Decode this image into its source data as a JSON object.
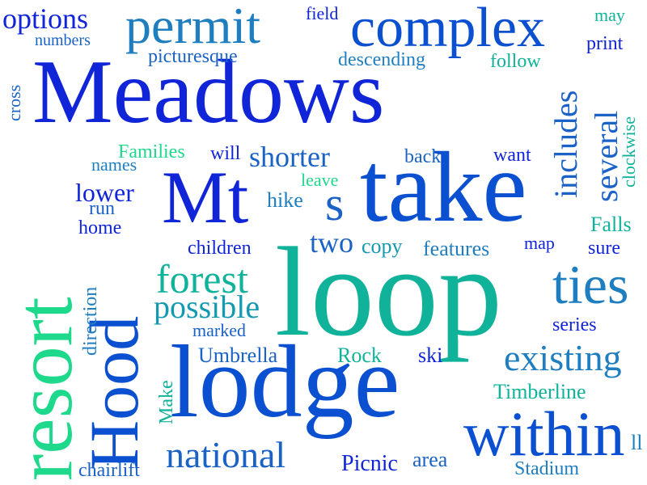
{
  "colors": {
    "blue_dark": "#1024d8",
    "blue": "#0b50d0",
    "blue_mid": "#1a62c6",
    "blue_light": "#1f7ec0",
    "teal": "#149ab0",
    "teal_green": "#10b39a",
    "green": "#1ed98c"
  },
  "words": [
    "Meadows",
    "loop",
    "take",
    "lodge",
    "resort",
    "Mt",
    "Hood",
    "complex",
    "permit",
    "within",
    "ties",
    "existing",
    "several",
    "forest",
    "possible",
    "national",
    "shorter",
    "s",
    "two",
    "includes",
    "options",
    "Umbrella",
    "Rock",
    "features",
    "lower",
    "Falls",
    "Timberline",
    "Picnic",
    "area",
    "Stadium",
    "series",
    "copy",
    "children",
    "marked",
    "chairlift",
    "ski",
    "leave",
    "hike",
    "back",
    "want",
    "map",
    "sure",
    "Make",
    "direction",
    "run",
    "home",
    "names",
    "will",
    "Families",
    "field",
    "may",
    "print",
    "follow",
    "descending",
    "picturesque",
    "numbers",
    "cross",
    "clockwise",
    "ll"
  ]
}
